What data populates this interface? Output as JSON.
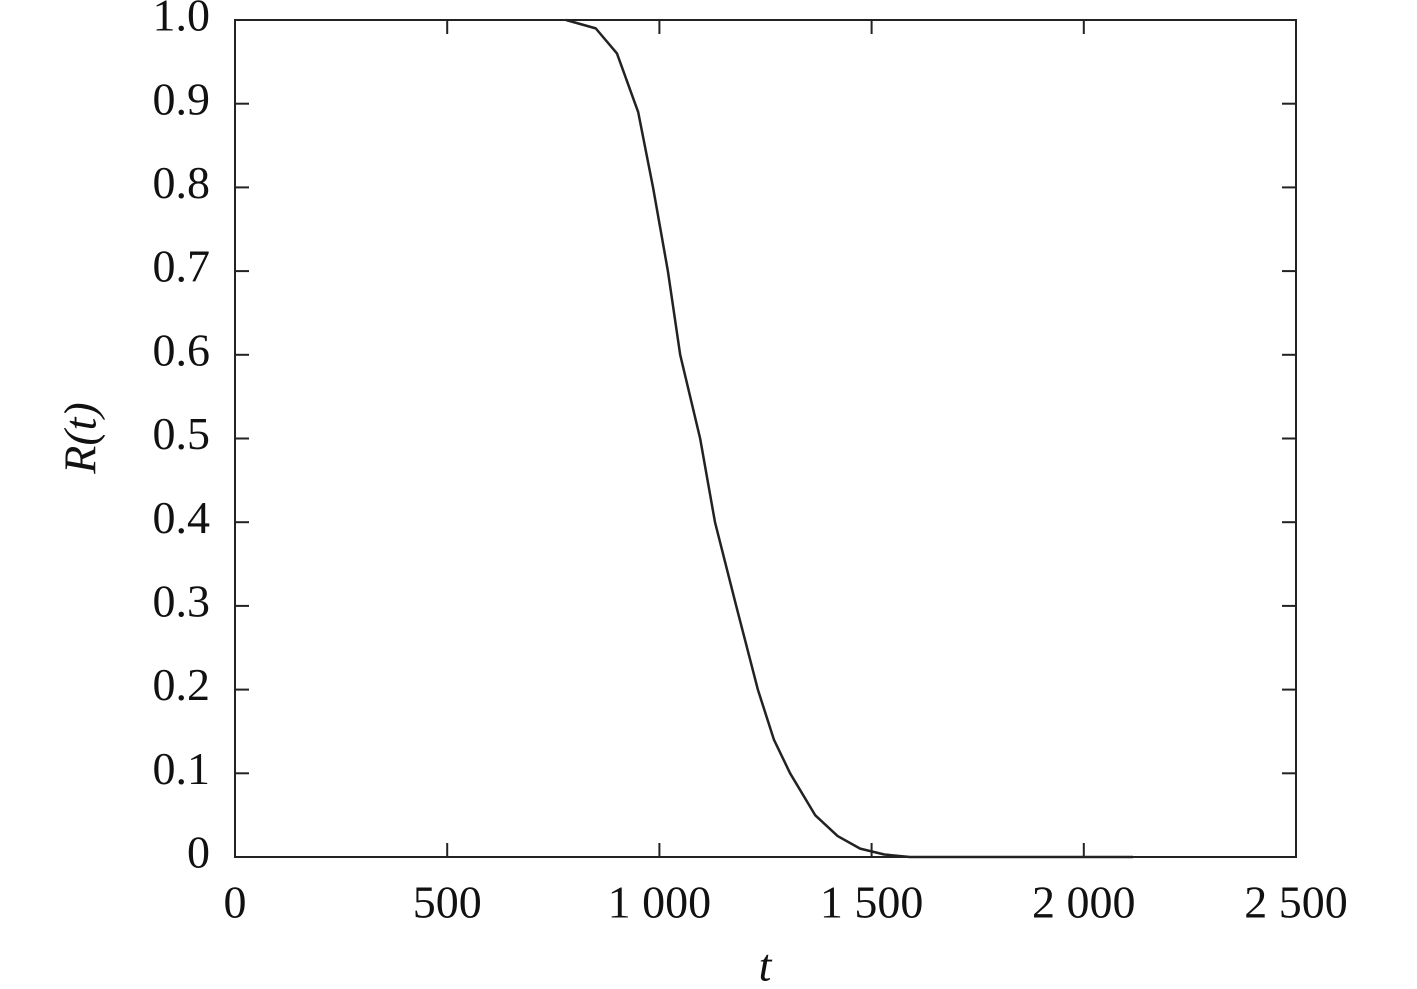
{
  "chart_data": {
    "type": "line",
    "x_label": "t",
    "y_label": "R(t)",
    "x": [
      780,
      850,
      900,
      950,
      985,
      1020,
      1049,
      1096,
      1131,
      1181,
      1232,
      1270,
      1308,
      1367,
      1420,
      1473,
      1530,
      1590,
      2116
    ],
    "series": [
      {
        "color": "#222222",
        "values": [
          1.0,
          0.99,
          0.96,
          0.89,
          0.8,
          0.7,
          0.6,
          0.5,
          0.4,
          0.3,
          0.2,
          0.14,
          0.1,
          0.05,
          0.025,
          0.01,
          0.003,
          0,
          0
        ]
      }
    ],
    "xlim": [
      0,
      2500
    ],
    "xticks": [
      0,
      500,
      {
        "value": 1000,
        "label": "1 000"
      },
      {
        "value": 1500,
        "label": "1 500"
      },
      {
        "value": 2000,
        "label": "2 000"
      },
      {
        "value": 2500,
        "label": "2 500"
      }
    ],
    "ylim": [
      0,
      1
    ],
    "yticks": [
      0,
      0.1,
      0.2,
      0.3,
      0.4,
      0.5,
      0.6,
      0.7,
      0.8,
      0.9,
      {
        "value": 1,
        "label": "1.0"
      }
    ],
    "grid": false
  }
}
